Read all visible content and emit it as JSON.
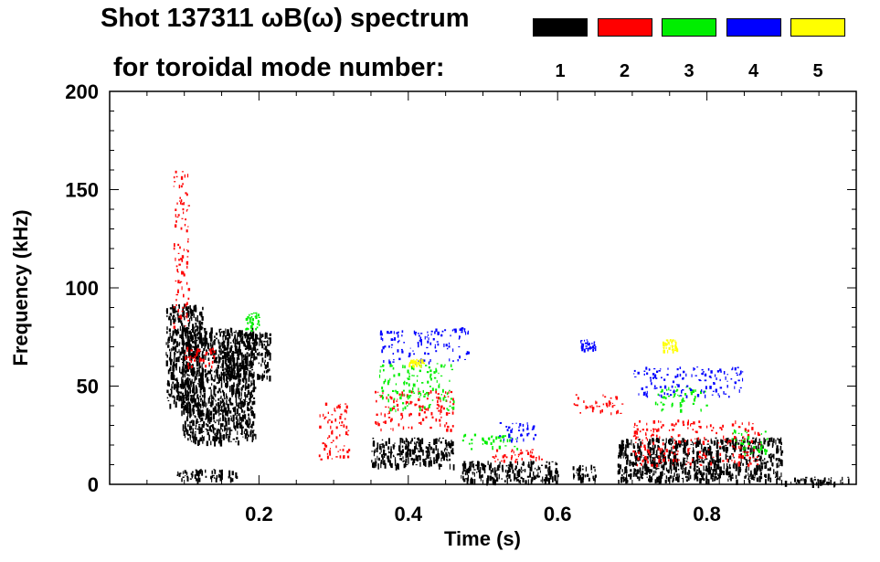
{
  "chart_data": {
    "type": "heatmap",
    "title_line1": "Shot 137311 ωB(ω) spectrum",
    "title_line2": "for toroidal mode number:",
    "xlabel": "Time (s)",
    "ylabel": "Frequency (kHz)",
    "xlim": [
      0.0,
      1.0
    ],
    "ylim": [
      0,
      200
    ],
    "x_ticks": [
      0.2,
      0.4,
      0.6,
      0.8
    ],
    "x_tick_labels": [
      "0.2",
      "0.4",
      "0.6",
      "0.8"
    ],
    "y_ticks": [
      0,
      50,
      100,
      150,
      200
    ],
    "y_tick_labels": [
      "0",
      "50",
      "100",
      "150",
      "200"
    ],
    "legend": [
      {
        "label": "1",
        "color": "#000000"
      },
      {
        "label": "2",
        "color": "#ff0000"
      },
      {
        "label": "3",
        "color": "#00ee00"
      },
      {
        "label": "4",
        "color": "#0000ff"
      },
      {
        "label": "5",
        "color": "#ffff00"
      }
    ],
    "regions": [
      {
        "n": 1,
        "t": [
          0.075,
          0.125
        ],
        "f": [
          40,
          92
        ]
      },
      {
        "n": 1,
        "t": [
          0.095,
          0.195
        ],
        "f": [
          22,
          80
        ]
      },
      {
        "n": 1,
        "t": [
          0.15,
          0.215
        ],
        "f": [
          55,
          78
        ]
      },
      {
        "n": 1,
        "t": [
          0.09,
          0.17
        ],
        "f": [
          3,
          8
        ]
      },
      {
        "n": 1,
        "t": [
          0.35,
          0.46
        ],
        "f": [
          10,
          24
        ]
      },
      {
        "n": 1,
        "t": [
          0.47,
          0.6
        ],
        "f": [
          2,
          12
        ]
      },
      {
        "n": 1,
        "t": [
          0.62,
          0.65
        ],
        "f": [
          3,
          10
        ]
      },
      {
        "n": 1,
        "t": [
          0.68,
          0.9
        ],
        "f": [
          2,
          24
        ]
      },
      {
        "n": 1,
        "t": [
          0.9,
          0.99
        ],
        "f": [
          1,
          4
        ]
      },
      {
        "n": 2,
        "t": [
          0.085,
          0.105
        ],
        "f": [
          80,
          160
        ]
      },
      {
        "n": 2,
        "t": [
          0.1,
          0.14
        ],
        "f": [
          60,
          70
        ]
      },
      {
        "n": 2,
        "t": [
          0.28,
          0.32
        ],
        "f": [
          12,
          42
        ]
      },
      {
        "n": 2,
        "t": [
          0.355,
          0.46
        ],
        "f": [
          28,
          48
        ]
      },
      {
        "n": 2,
        "t": [
          0.62,
          0.69
        ],
        "f": [
          36,
          46
        ]
      },
      {
        "n": 2,
        "t": [
          0.7,
          0.87
        ],
        "f": [
          10,
          33
        ]
      },
      {
        "n": 2,
        "t": [
          0.51,
          0.58
        ],
        "f": [
          12,
          18
        ]
      },
      {
        "n": 3,
        "t": [
          0.18,
          0.2
        ],
        "f": [
          78,
          88
        ]
      },
      {
        "n": 3,
        "t": [
          0.36,
          0.46
        ],
        "f": [
          38,
          62
        ]
      },
      {
        "n": 3,
        "t": [
          0.47,
          0.55
        ],
        "f": [
          18,
          26
        ]
      },
      {
        "n": 3,
        "t": [
          0.73,
          0.8
        ],
        "f": [
          38,
          50
        ]
      },
      {
        "n": 3,
        "t": [
          0.83,
          0.88
        ],
        "f": [
          15,
          28
        ]
      },
      {
        "n": 4,
        "t": [
          0.36,
          0.48
        ],
        "f": [
          62,
          80
        ]
      },
      {
        "n": 4,
        "t": [
          0.52,
          0.57
        ],
        "f": [
          22,
          32
        ]
      },
      {
        "n": 4,
        "t": [
          0.7,
          0.85
        ],
        "f": [
          45,
          60
        ]
      },
      {
        "n": 4,
        "t": [
          0.63,
          0.65
        ],
        "f": [
          68,
          74
        ]
      },
      {
        "n": 5,
        "t": [
          0.74,
          0.76
        ],
        "f": [
          68,
          74
        ]
      },
      {
        "n": 5,
        "t": [
          0.4,
          0.42
        ],
        "f": [
          60,
          64
        ]
      }
    ]
  }
}
